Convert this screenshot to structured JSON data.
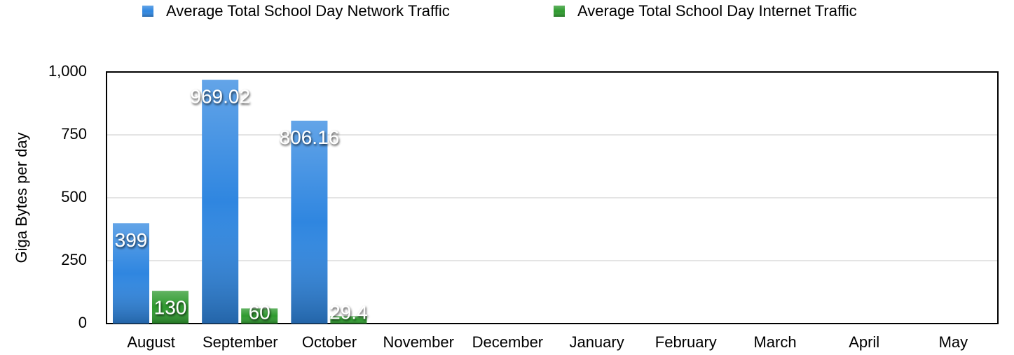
{
  "chart_data": {
    "type": "bar",
    "ylabel": "Giga Bytes per day",
    "categories": [
      "August",
      "September",
      "October",
      "November",
      "December",
      "January",
      "February",
      "March",
      "April",
      "May"
    ],
    "series": [
      {
        "name": "Average Total School Day Network Traffic",
        "color": "#2f86e0",
        "values": [
          399,
          969.02,
          806.16,
          null,
          null,
          null,
          null,
          null,
          null,
          null
        ]
      },
      {
        "name": "Average Total School Day Internet Traffic",
        "color": "#2e9a2e",
        "values": [
          130,
          60,
          29.4,
          null,
          null,
          null,
          null,
          null,
          null,
          null
        ]
      }
    ],
    "ylim": [
      0,
      1000
    ],
    "yticks": [
      0,
      250,
      500,
      750,
      {
        "value": 1000,
        "label": "1,000"
      }
    ],
    "grid": true,
    "legend": "top"
  }
}
